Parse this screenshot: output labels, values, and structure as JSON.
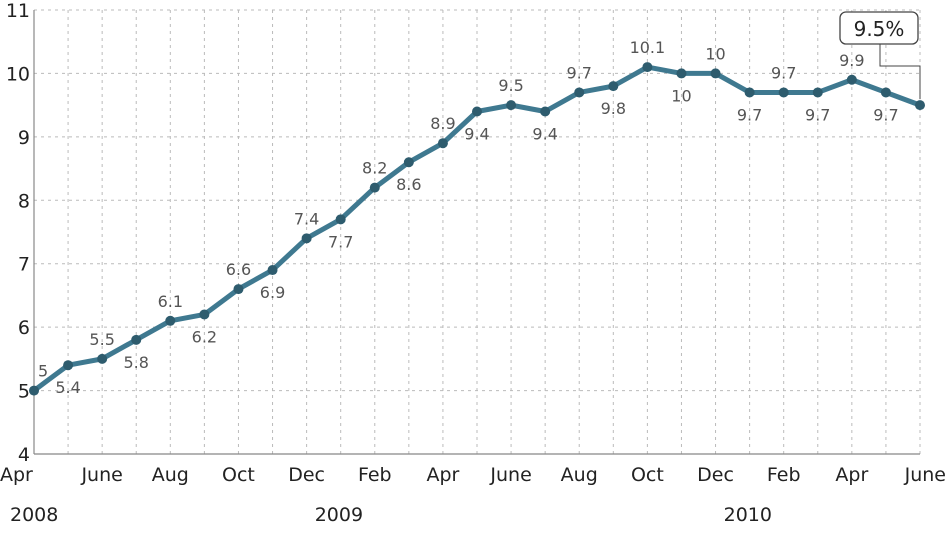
{
  "chart_data": {
    "type": "line",
    "x": [
      "2008-04",
      "2008-05",
      "2008-06",
      "2008-07",
      "2008-08",
      "2008-09",
      "2008-10",
      "2008-11",
      "2008-12",
      "2009-01",
      "2009-02",
      "2009-03",
      "2009-04",
      "2009-05",
      "2009-06",
      "2009-07",
      "2009-08",
      "2009-09",
      "2009-10",
      "2009-11",
      "2009-12",
      "2010-01",
      "2010-02",
      "2010-03",
      "2010-04",
      "2010-05",
      "2010-06"
    ],
    "values": [
      5.0,
      5.4,
      5.5,
      5.8,
      6.1,
      6.2,
      6.6,
      6.9,
      7.4,
      7.7,
      8.2,
      8.6,
      8.9,
      9.4,
      9.5,
      9.4,
      9.7,
      9.8,
      10.1,
      10.0,
      10.0,
      9.7,
      9.7,
      9.7,
      9.9,
      9.7,
      9.5
    ],
    "data_labels": [
      "5",
      "5.4",
      "5.5",
      "5.8",
      "6.1",
      "6.2",
      "6.6",
      "6.9",
      "7.4",
      "7.7",
      "8.2",
      "8.6",
      "8.9",
      "9.4",
      "9.5",
      "9.4",
      "9.7",
      "9.8",
      "10.1",
      "10",
      "10",
      "9.7",
      "9.7",
      "9.7",
      "9.9",
      "9.7",
      ""
    ],
    "x_ticks": [
      {
        "label": "Apr",
        "x": "2008-04"
      },
      {
        "label": "June",
        "x": "2008-06"
      },
      {
        "label": "Aug",
        "x": "2008-08"
      },
      {
        "label": "Oct",
        "x": "2008-10"
      },
      {
        "label": "Dec",
        "x": "2008-12"
      },
      {
        "label": "Feb",
        "x": "2009-02"
      },
      {
        "label": "Apr",
        "x": "2009-04"
      },
      {
        "label": "June",
        "x": "2009-06"
      },
      {
        "label": "Aug",
        "x": "2009-08"
      },
      {
        "label": "Oct",
        "x": "2009-10"
      },
      {
        "label": "Dec",
        "x": "2009-12"
      },
      {
        "label": "Feb",
        "x": "2010-02"
      },
      {
        "label": "Apr",
        "x": "2010-04"
      },
      {
        "label": "June",
        "x": "2010-06"
      }
    ],
    "year_labels": [
      {
        "label": "2008",
        "x": "2008-04"
      },
      {
        "label": "2009",
        "x": "2009-01"
      },
      {
        "label": "2010",
        "x": "2010-01"
      }
    ],
    "y_ticks": [
      "4",
      "5",
      "6",
      "7",
      "8",
      "9",
      "10",
      "11"
    ],
    "ylim": [
      4,
      11
    ],
    "grid": true,
    "callout": {
      "text": "9.5%",
      "x": "2010-06"
    },
    "title": "",
    "xlabel": "",
    "ylabel": "",
    "colors": {
      "line": "#3f7990",
      "point": "#2e5c6e",
      "grid": "#bbbbbb",
      "axis": "#888888"
    }
  }
}
